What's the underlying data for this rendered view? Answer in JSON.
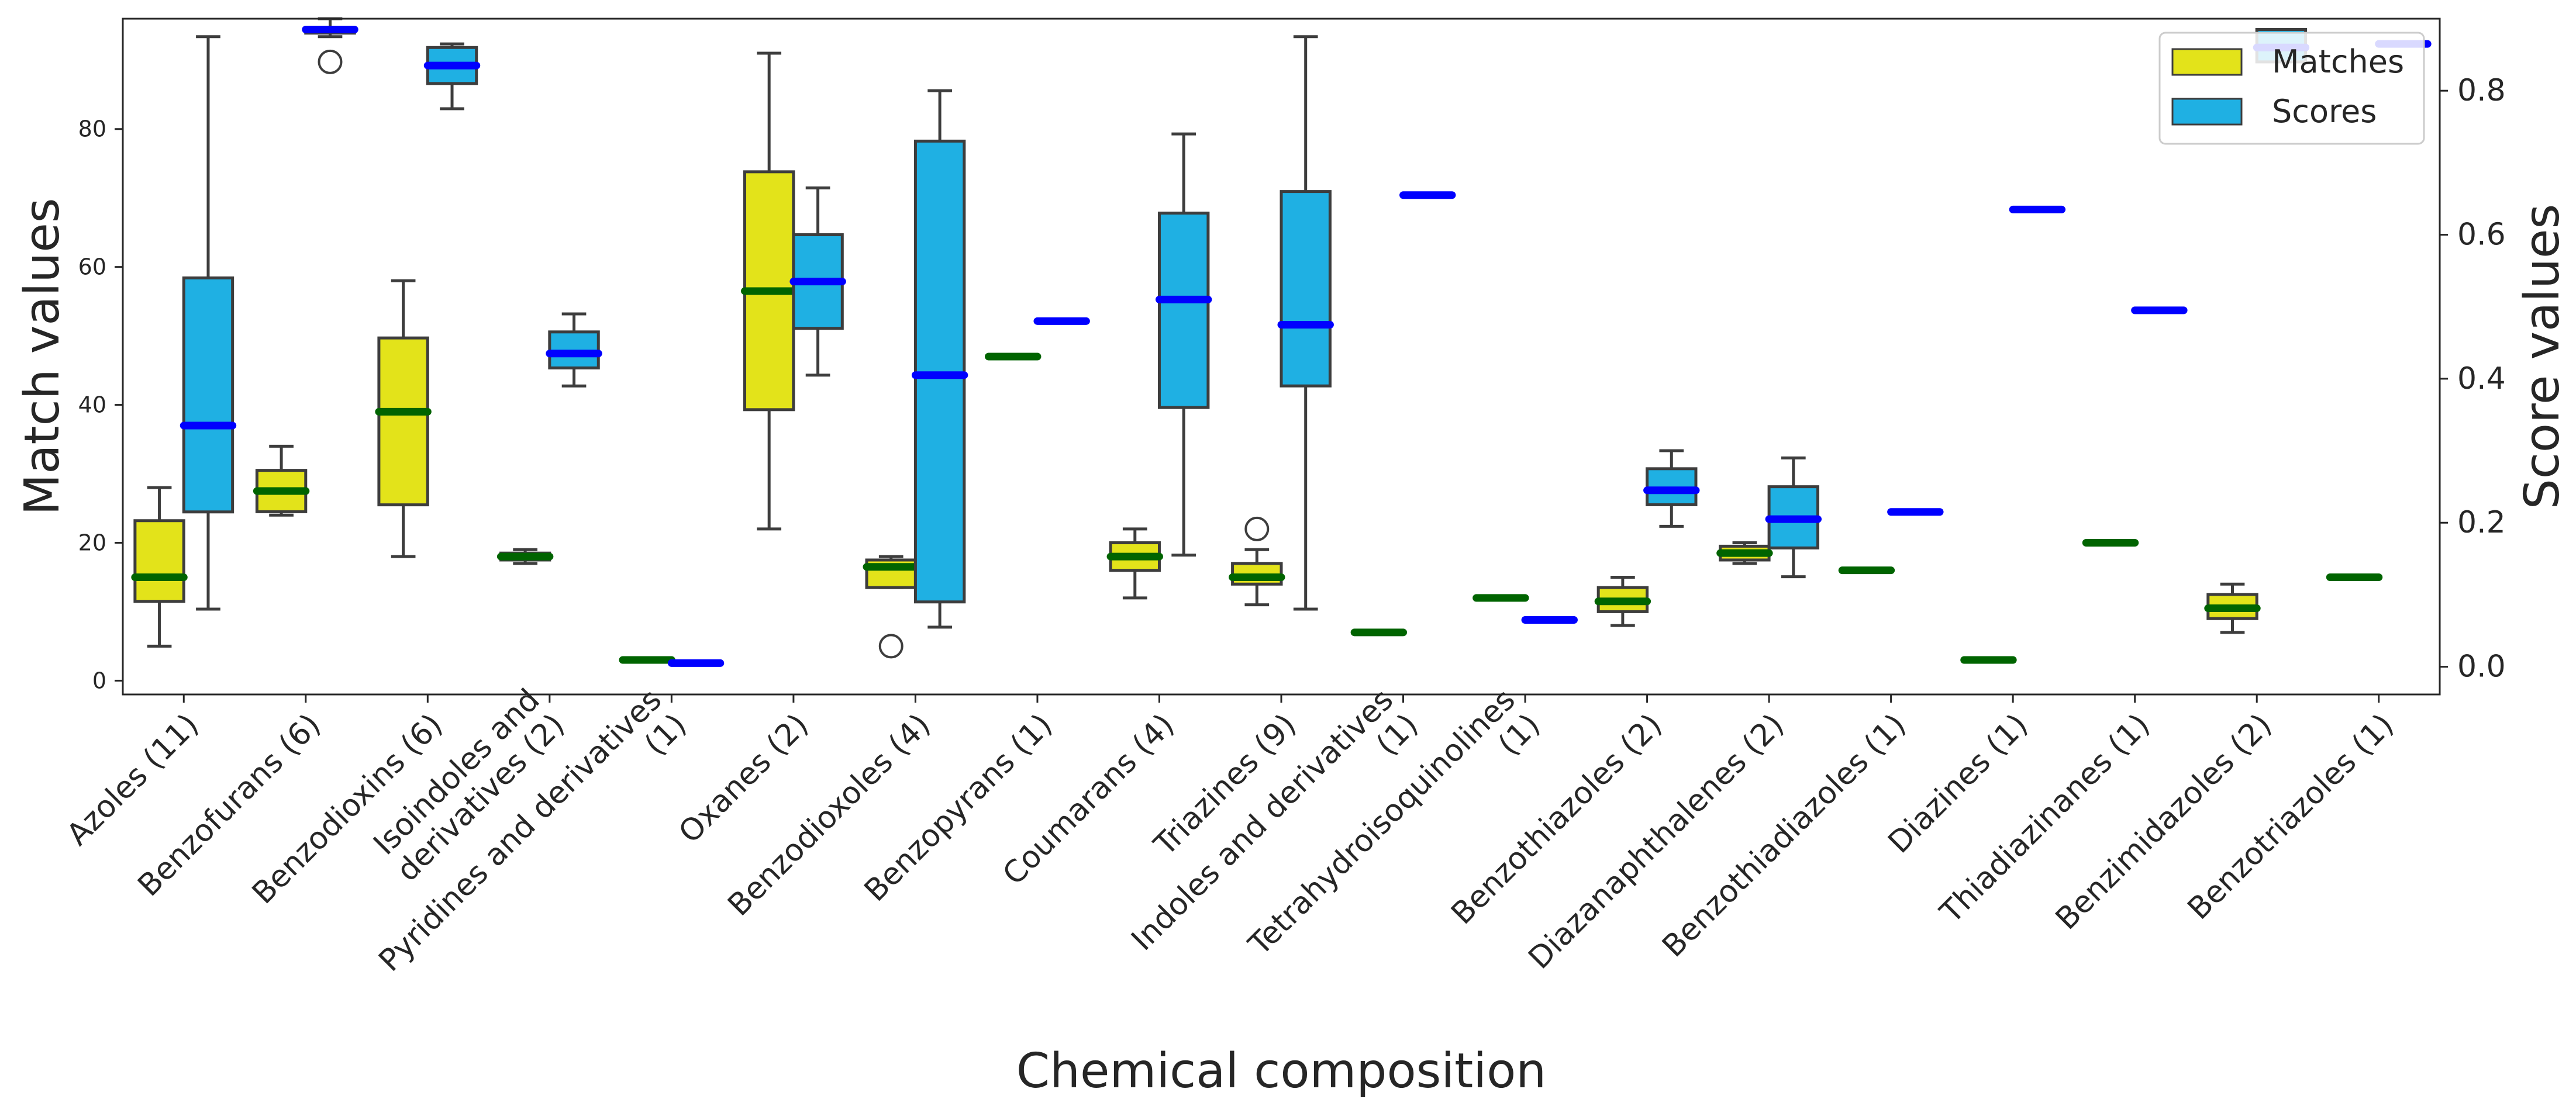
{
  "chart_data": {
    "type": "box",
    "title": "",
    "xlabel": "Chemical composition",
    "ylabel_left": "Match values",
    "ylabel_right": "Score values",
    "ylim_left": [
      -2,
      96
    ],
    "ylim_right": [
      -0.0385,
      0.9
    ],
    "yticks_left": [
      0,
      20,
      40,
      60,
      80
    ],
    "yticks_right": [
      0.0,
      0.2,
      0.4,
      0.6,
      0.8
    ],
    "ytick_labels_left": [
      "0",
      "20",
      "40",
      "60",
      "80"
    ],
    "ytick_labels_right": [
      "0.0",
      "0.2",
      "0.4",
      "0.6",
      "0.8"
    ],
    "grid": false,
    "legend": {
      "placement": "top-right",
      "entries": [
        {
          "label": "Matches",
          "color": "#e3e31a"
        },
        {
          "label": "Scores",
          "color": "#1fb0e3"
        }
      ]
    },
    "colors": {
      "matches_fill": "#e3e31a",
      "scores_fill": "#1fb0e3",
      "box_edge": "#3d3d3d",
      "match_median": "#006400",
      "score_median": "#0000ff",
      "axis": "#262626"
    },
    "categories": [
      "Azoles (11)",
      "Benzofurans (6)",
      "Benzodioxins (6)",
      "Isoindoles and\nderivatives (2)",
      "Pyridines and derivatives\n(1)",
      "Oxanes (2)",
      "Benzodioxoles (4)",
      "Benzopyrans (1)",
      "Coumarans (4)",
      "Triazines (9)",
      "Indoles and derivatives\n(1)",
      "Tetrahydroisoquinolines\n(1)",
      "Benzothiazoles (2)",
      "Diazanaphthalenes (2)",
      "Benzothiadiazoles (1)",
      "Diazines (1)",
      "Thiadiazinanes (1)",
      "Benzimidazoles (2)",
      "Benzotriazoles (1)"
    ],
    "series": [
      {
        "name": "Matches",
        "axis": "left",
        "boxes": [
          {
            "wlo": 5,
            "q1": 11.5,
            "med": 15,
            "q3": 23.2,
            "whi": 28,
            "fliers": []
          },
          {
            "wlo": 24,
            "q1": 24.5,
            "med": 27.5,
            "q3": 30.5,
            "whi": 34,
            "fliers": []
          },
          {
            "wlo": 18,
            "q1": 25.5,
            "med": 39,
            "q3": 49.7,
            "whi": 58,
            "fliers": []
          },
          {
            "wlo": 17,
            "q1": 17.5,
            "med": 18,
            "q3": 18.5,
            "whi": 19,
            "fliers": []
          },
          {
            "wlo": 3,
            "q1": 3,
            "med": 3,
            "q3": 3,
            "whi": 3,
            "fliers": []
          },
          {
            "wlo": 22,
            "q1": 39.3,
            "med": 56.5,
            "q3": 73.8,
            "whi": 91,
            "fliers": []
          },
          {
            "wlo": 13.5,
            "q1": 13.5,
            "med": 16.5,
            "q3": 17.5,
            "whi": 18,
            "fliers": [
              5
            ]
          },
          {
            "wlo": 47,
            "q1": 47,
            "med": 47,
            "q3": 47,
            "whi": 47,
            "fliers": []
          },
          {
            "wlo": 12,
            "q1": 16,
            "med": 18,
            "q3": 20,
            "whi": 22,
            "fliers": []
          },
          {
            "wlo": 11,
            "q1": 14,
            "med": 15,
            "q3": 17,
            "whi": 19,
            "fliers": [
              22
            ]
          },
          {
            "wlo": 7,
            "q1": 7,
            "med": 7,
            "q3": 7,
            "whi": 7,
            "fliers": []
          },
          {
            "wlo": 12,
            "q1": 12,
            "med": 12,
            "q3": 12,
            "whi": 12,
            "fliers": []
          },
          {
            "wlo": 8,
            "q1": 10,
            "med": 11.5,
            "q3": 13.5,
            "whi": 15,
            "fliers": []
          },
          {
            "wlo": 17,
            "q1": 17.5,
            "med": 18.5,
            "q3": 19.5,
            "whi": 20,
            "fliers": []
          },
          {
            "wlo": 16,
            "q1": 16,
            "med": 16,
            "q3": 16,
            "whi": 16,
            "fliers": []
          },
          {
            "wlo": 3,
            "q1": 3,
            "med": 3,
            "q3": 3,
            "whi": 3,
            "fliers": []
          },
          {
            "wlo": 20,
            "q1": 20,
            "med": 20,
            "q3": 20,
            "whi": 20,
            "fliers": []
          },
          {
            "wlo": 7,
            "q1": 9,
            "med": 10.5,
            "q3": 12.5,
            "whi": 14,
            "fliers": []
          },
          {
            "wlo": 15,
            "q1": 15,
            "med": 15,
            "q3": 15,
            "whi": 15,
            "fliers": []
          }
        ]
      },
      {
        "name": "Scores",
        "axis": "right",
        "boxes": [
          {
            "wlo": 0.08,
            "q1": 0.215,
            "med": 0.335,
            "q3": 0.54,
            "whi": 0.875,
            "fliers": []
          },
          {
            "wlo": 0.875,
            "q1": 0.88,
            "med": 0.885,
            "q3": 0.885,
            "whi": 0.9,
            "fliers": [
              0.84
            ]
          },
          {
            "wlo": 0.775,
            "q1": 0.81,
            "med": 0.835,
            "q3": 0.86,
            "whi": 0.865,
            "fliers": []
          },
          {
            "wlo": 0.39,
            "q1": 0.415,
            "med": 0.435,
            "q3": 0.465,
            "whi": 0.49,
            "fliers": []
          },
          {
            "wlo": 0.005,
            "q1": 0.005,
            "med": 0.005,
            "q3": 0.005,
            "whi": 0.005,
            "fliers": []
          },
          {
            "wlo": 0.405,
            "q1": 0.47,
            "med": 0.535,
            "q3": 0.6,
            "whi": 0.665,
            "fliers": []
          },
          {
            "wlo": 0.055,
            "q1": 0.09,
            "med": 0.405,
            "q3": 0.73,
            "whi": 0.8,
            "fliers": []
          },
          {
            "wlo": 0.48,
            "q1": 0.48,
            "med": 0.48,
            "q3": 0.48,
            "whi": 0.48,
            "fliers": []
          },
          {
            "wlo": 0.155,
            "q1": 0.36,
            "med": 0.51,
            "q3": 0.63,
            "whi": 0.74,
            "fliers": []
          },
          {
            "wlo": 0.08,
            "q1": 0.39,
            "med": 0.475,
            "q3": 0.66,
            "whi": 0.875,
            "fliers": []
          },
          {
            "wlo": 0.655,
            "q1": 0.655,
            "med": 0.655,
            "q3": 0.655,
            "whi": 0.655,
            "fliers": []
          },
          {
            "wlo": 0.065,
            "q1": 0.065,
            "med": 0.065,
            "q3": 0.065,
            "whi": 0.065,
            "fliers": []
          },
          {
            "wlo": 0.195,
            "q1": 0.225,
            "med": 0.245,
            "q3": 0.275,
            "whi": 0.3,
            "fliers": []
          },
          {
            "wlo": 0.125,
            "q1": 0.165,
            "med": 0.205,
            "q3": 0.25,
            "whi": 0.29,
            "fliers": []
          },
          {
            "wlo": 0.215,
            "q1": 0.215,
            "med": 0.215,
            "q3": 0.215,
            "whi": 0.215,
            "fliers": []
          },
          {
            "wlo": 0.635,
            "q1": 0.635,
            "med": 0.635,
            "q3": 0.635,
            "whi": 0.635,
            "fliers": []
          },
          {
            "wlo": 0.495,
            "q1": 0.495,
            "med": 0.495,
            "q3": 0.495,
            "whi": 0.495,
            "fliers": []
          },
          {
            "wlo": 0.87,
            "q1": 0.84,
            "med": 0.86,
            "q3": 0.885,
            "whi": 0.87,
            "fliers": []
          },
          {
            "wlo": 0.865,
            "q1": 0.865,
            "med": 0.865,
            "q3": 0.865,
            "whi": 0.865,
            "fliers": []
          }
        ]
      }
    ]
  }
}
